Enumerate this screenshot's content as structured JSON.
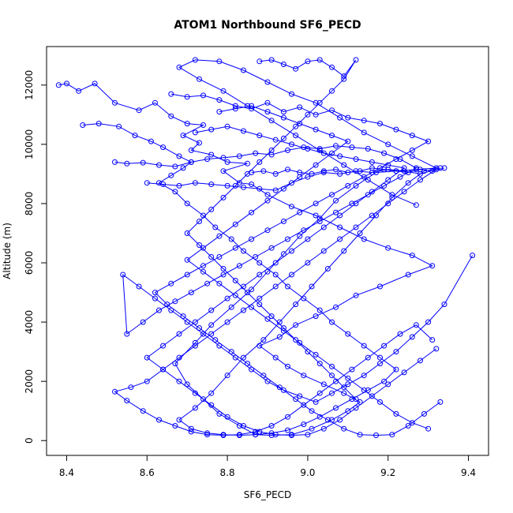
{
  "chart_data": {
    "type": "line",
    "title": "ATOM1 Northbound SF6_PECD",
    "xlabel": "SF6_PECD",
    "ylabel": "Altitude (m)",
    "xlim": [
      8.35,
      9.45
    ],
    "ylim": [
      -500,
      13300
    ],
    "xticks": [
      "8.4",
      "8.6",
      "8.8",
      "9.0",
      "9.2",
      "9.4"
    ],
    "xtick_values": [
      8.4,
      8.6,
      8.8,
      9.0,
      9.2,
      9.4
    ],
    "yticks": [
      "0",
      "2000",
      "4000",
      "6000",
      "8000",
      "10000",
      "12000"
    ],
    "ytick_values": [
      0,
      2000,
      4000,
      6000,
      8000,
      10000,
      12000
    ],
    "grid": false,
    "legend": "none",
    "marker": "open-circle",
    "series_color": "#0000ff",
    "series": [
      {
        "x": [
          8.38,
          8.4,
          8.43,
          8.47,
          8.52,
          8.58,
          8.62,
          8.66,
          8.7,
          8.74,
          8.69,
          8.73,
          8.71,
          8.76,
          8.8,
          8.85,
          8.79,
          8.83,
          8.86,
          8.9,
          8.96,
          9.02,
          9.08,
          9.14,
          9.2,
          9.26,
          9.31,
          9.25,
          9.18,
          9.12,
          9.07,
          9.02,
          8.97,
          8.93,
          8.88,
          8.92,
          8.95,
          8.99,
          9.04,
          9.09,
          9.13,
          9.1,
          9.06,
          9.01,
          8.96,
          8.91,
          8.87,
          8.83,
          8.78,
          8.74,
          8.7,
          8.67,
          8.72,
          8.76,
          8.81,
          8.86,
          8.9,
          8.94,
          8.98,
          9.03,
          9.07,
          9.12,
          9.17,
          9.22,
          9.27,
          9.32,
          9.26,
          9.2,
          9.14,
          9.08,
          9.02,
          8.96,
          8.9,
          8.84,
          8.78,
          8.72,
          8.68,
          8.73,
          8.79,
          8.85,
          8.91,
          8.97,
          9.03,
          9.09,
          9.15,
          9.21,
          9.27
        ],
        "y": [
          12000,
          12050,
          11800,
          12050,
          11400,
          11150,
          11400,
          10950,
          10700,
          10650,
          10300,
          10050,
          9800,
          9650,
          9400,
          9350,
          9100,
          8700,
          8650,
          8300,
          7900,
          7600,
          7200,
          6800,
          6500,
          6250,
          5900,
          5600,
          5200,
          4900,
          4500,
          4200,
          3900,
          3500,
          3200,
          2800,
          2500,
          2200,
          1900,
          1600,
          1300,
          1000,
          700,
          400,
          200,
          180,
          200,
          500,
          900,
          1400,
          1900,
          2600,
          3300,
          3900,
          4500,
          5100,
          5700,
          6300,
          6900,
          7500,
          8100,
          8600,
          9050,
          9100,
          9150,
          9200,
          9600,
          10000,
          10400,
          10900,
          11400,
          11700,
          12100,
          12500,
          12800,
          12850,
          12600,
          12200,
          11800,
          11300,
          10800,
          10300,
          9800,
          9300,
          8800,
          8300,
          7950
        ]
      },
      {
        "x": [
          8.44,
          8.48,
          8.53,
          8.57,
          8.61,
          8.64,
          8.68,
          8.71,
          8.69,
          8.66,
          8.63,
          8.67,
          8.7,
          8.74,
          8.77,
          8.81,
          8.84,
          8.88,
          8.92,
          8.95,
          8.99,
          9.03,
          9.06,
          9.1,
          9.14,
          9.18,
          9.22,
          9.19,
          9.15,
          9.11,
          9.07,
          9.03,
          8.99,
          8.95,
          8.91,
          8.87,
          8.83,
          8.79,
          8.75,
          8.71,
          8.68,
          8.72,
          8.76,
          8.8,
          8.84,
          8.89,
          8.93,
          8.97,
          9.01,
          9.05,
          9.09,
          9.13,
          9.17,
          9.21,
          9.25,
          9.29,
          9.33
        ],
        "y": [
          10650,
          10700,
          10600,
          10300,
          10100,
          9900,
          9600,
          9400,
          9200,
          8950,
          8700,
          8400,
          8000,
          7600,
          7200,
          6800,
          6400,
          6000,
          5600,
          5200,
          4800,
          4400,
          4000,
          3600,
          3200,
          2800,
          2400,
          2000,
          1700,
          1400,
          1100,
          800,
          550,
          350,
          250,
          200,
          180,
          200,
          250,
          400,
          700,
          1100,
          1600,
          2200,
          2800,
          3400,
          4000,
          4600,
          5200,
          5800,
          6400,
          7000,
          7600,
          8200,
          8700,
          9100,
          9200
        ]
      },
      {
        "x": [
          8.52,
          8.55,
          8.59,
          8.63,
          8.67,
          8.71,
          8.75,
          8.79,
          8.83,
          8.87,
          8.91,
          8.95,
          8.99,
          9.03,
          9.07,
          9.11,
          9.15,
          9.19,
          9.23,
          9.27,
          9.23,
          9.19,
          9.15,
          9.11,
          9.07,
          9.03,
          8.99,
          8.95,
          8.91,
          8.87,
          8.83,
          8.79,
          8.75,
          8.71,
          8.67,
          8.63,
          8.59,
          8.55,
          8.54,
          8.58,
          8.62,
          8.66,
          8.7,
          8.74,
          8.78,
          8.82,
          8.86,
          8.9,
          8.94,
          8.98,
          9.02,
          9.06,
          9.1,
          9.14,
          9.18,
          9.22,
          9.26,
          9.3,
          9.34,
          9.41
        ],
        "y": [
          9400,
          9350,
          9380,
          9300,
          9250,
          9400,
          9500,
          9550,
          9600,
          9700,
          9650,
          9800,
          9900,
          9850,
          9950,
          9900,
          9850,
          9700,
          9500,
          9200,
          8900,
          8600,
          8300,
          8000,
          7700,
          7400,
          7100,
          6800,
          6500,
          6200,
          5900,
          5600,
          5300,
          5000,
          4700,
          4400,
          4000,
          3600,
          5600,
          5200,
          4800,
          4400,
          4000,
          3600,
          3200,
          2800,
          2400,
          2000,
          1700,
          1500,
          1300,
          1600,
          1900,
          2200,
          2600,
          3000,
          3500,
          4000,
          4600,
          6250
        ]
      },
      {
        "x": [
          8.6,
          8.64,
          8.68,
          8.72,
          8.76,
          8.8,
          8.84,
          8.88,
          8.92,
          8.96,
          9.0,
          9.04,
          9.08,
          9.12,
          9.16,
          9.2,
          9.24,
          9.28,
          9.32,
          9.28,
          9.24,
          9.2,
          9.16,
          9.12,
          9.08,
          9.04,
          9.0,
          8.96,
          8.92,
          8.88,
          8.84,
          8.8,
          8.76,
          8.72,
          8.68,
          8.64,
          8.6,
          8.56,
          8.52,
          8.55,
          8.59,
          8.63,
          8.67,
          8.71,
          8.75,
          8.79,
          8.83,
          8.87,
          8.91,
          8.95,
          8.99,
          9.03,
          9.07,
          9.11,
          9.15,
          9.19,
          9.23,
          9.27,
          9.31
        ],
        "y": [
          8700,
          8650,
          8600,
          8700,
          8650,
          8600,
          8550,
          8500,
          8450,
          8700,
          8900,
          9050,
          9000,
          9100,
          9050,
          9150,
          9100,
          9000,
          9150,
          8800,
          8400,
          8000,
          7600,
          7200,
          6800,
          6400,
          6000,
          5600,
          5200,
          4800,
          4400,
          4000,
          3600,
          3200,
          2800,
          2400,
          2000,
          1800,
          1650,
          1350,
          1000,
          700,
          500,
          300,
          200,
          180,
          200,
          300,
          500,
          800,
          1200,
          1600,
          2000,
          2400,
          2800,
          3200,
          3600,
          3900,
          3400
        ]
      },
      {
        "x": [
          8.66,
          8.7,
          8.74,
          8.78,
          8.82,
          8.86,
          8.9,
          8.94,
          8.98,
          9.02,
          9.06,
          9.1,
          9.14,
          9.18,
          9.22,
          9.26,
          9.3,
          9.26,
          9.22,
          9.18,
          9.14,
          9.1,
          9.06,
          9.02,
          8.98,
          8.94,
          8.9,
          8.86,
          8.82,
          8.78,
          8.74,
          8.7,
          8.66,
          8.62,
          8.65,
          8.69,
          8.73,
          8.77,
          8.81,
          8.85,
          8.89,
          8.93,
          8.97,
          9.01,
          9.05,
          9.09,
          9.13,
          9.17,
          9.21,
          9.25,
          9.29,
          9.33
        ],
        "y": [
          11700,
          11600,
          11650,
          11500,
          11300,
          11200,
          11400,
          11100,
          11250,
          11000,
          11150,
          10900,
          10800,
          10700,
          10500,
          10300,
          10100,
          9800,
          9500,
          9200,
          8900,
          8600,
          8300,
          8000,
          7700,
          7400,
          7100,
          6800,
          6500,
          6200,
          5900,
          5600,
          5300,
          5000,
          4600,
          4200,
          3800,
          3400,
          3000,
          2600,
          2200,
          1800,
          1400,
          1000,
          700,
          400,
          200,
          180,
          200,
          500,
          900,
          1300
        ]
      },
      {
        "x": [
          8.72,
          8.76,
          8.8,
          8.84,
          8.88,
          8.92,
          8.96,
          9.0,
          9.04,
          9.08,
          9.12,
          9.16,
          9.2,
          9.24,
          9.2,
          9.16,
          9.12,
          9.08,
          9.04,
          9.0,
          8.96,
          8.92,
          8.88,
          8.84,
          8.8,
          8.76,
          8.72,
          8.68,
          8.64,
          8.6,
          8.64,
          8.68,
          8.72,
          8.76,
          8.8,
          8.84,
          8.88,
          8.92,
          8.96,
          9.0,
          9.04,
          9.08,
          9.12,
          9.16,
          9.2,
          9.24,
          9.28,
          9.32
        ],
        "y": [
          10400,
          10500,
          10600,
          10450,
          10300,
          10150,
          10000,
          9850,
          9700,
          9600,
          9500,
          9400,
          9300,
          9200,
          8800,
          8400,
          8000,
          7600,
          7200,
          6800,
          6400,
          6000,
          5600,
          5200,
          4800,
          4400,
          4000,
          3600,
          3200,
          2800,
          2400,
          2000,
          1600,
          1200,
          800,
          500,
          300,
          200,
          180,
          200,
          400,
          700,
          1100,
          1500,
          1900,
          2300,
          2700,
          3100
        ]
      },
      {
        "x": [
          8.78,
          8.82,
          8.86,
          8.9,
          8.94,
          8.98,
          9.02,
          9.06,
          9.1,
          9.06,
          9.02,
          8.98,
          8.94,
          8.9,
          8.86,
          8.82,
          8.78,
          8.74,
          8.7,
          8.74,
          8.78,
          8.82,
          8.86,
          8.9,
          8.94,
          8.98,
          9.02,
          9.06,
          9.1,
          9.14,
          9.18,
          9.22,
          9.26,
          9.3
        ],
        "y": [
          11100,
          11200,
          11300,
          11100,
          10900,
          10700,
          10500,
          10300,
          10100,
          9700,
          9300,
          8900,
          8500,
          8100,
          7700,
          7300,
          6900,
          6500,
          6100,
          5700,
          5300,
          4900,
          4500,
          4100,
          3700,
          3300,
          2900,
          2500,
          2100,
          1700,
          1300,
          900,
          600,
          400
        ]
      },
      {
        "x": [
          8.88,
          8.91,
          8.94,
          8.97,
          9.0,
          9.03,
          9.06,
          9.09,
          9.12,
          9.09,
          9.06,
          9.03,
          9.0,
          8.97,
          8.94,
          8.91,
          8.88,
          8.85,
          8.82,
          8.79,
          8.76,
          8.73,
          8.7,
          8.73,
          8.76,
          8.79,
          8.82,
          8.85,
          8.88,
          8.91,
          8.94,
          8.97,
          9.0,
          9.03,
          9.06,
          9.09,
          9.12
        ],
        "y": [
          12800,
          12850,
          12700,
          12550,
          12800,
          12850,
          12600,
          12300,
          12850,
          12200,
          11800,
          11400,
          11000,
          10600,
          10200,
          9800,
          9400,
          9000,
          8600,
          8200,
          7800,
          7400,
          7000,
          6600,
          6200,
          5800,
          5400,
          5000,
          4600,
          4200,
          3800,
          3400,
          3000,
          2600,
          2200,
          1800,
          1400
        ]
      },
      {
        "x": [
          8.86,
          8.89,
          8.92,
          8.95,
          8.98,
          9.01,
          9.04,
          9.07,
          9.1,
          9.13,
          9.16,
          9.19,
          9.22,
          9.25,
          9.28,
          9.31,
          9.34
        ],
        "y": [
          9050,
          9100,
          9000,
          9150,
          9050,
          9000,
          9100,
          9150,
          9050,
          9100,
          9200,
          9150,
          9100,
          9050,
          9150,
          9100,
          9200
        ]
      }
    ]
  }
}
